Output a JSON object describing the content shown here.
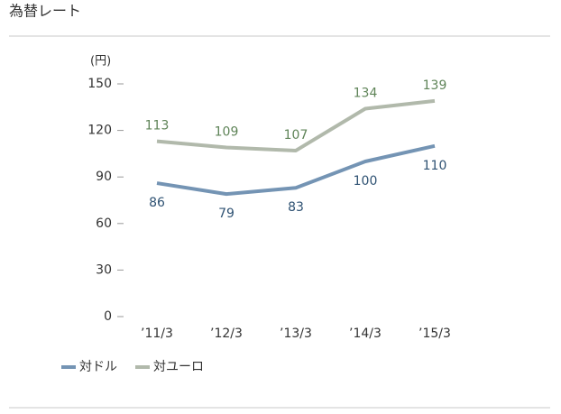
{
  "chart_data": {
    "type": "line",
    "title": "為替レート",
    "y_label": "(円)",
    "categories": [
      "’11/3",
      "’12/3",
      "’13/3",
      "’14/3",
      "’15/3"
    ],
    "series": [
      {
        "name": "対ドル",
        "color": "#7494b4",
        "label_color": "#2f5273",
        "values": [
          86,
          79,
          83,
          100,
          110
        ]
      },
      {
        "name": "対ユーロ",
        "color": "#b1b9ab",
        "label_color": "#5f8458",
        "values": [
          113,
          109,
          107,
          134,
          139
        ]
      }
    ],
    "ylim": [
      0,
      150
    ],
    "yticks": [
      0,
      30,
      60,
      90,
      120,
      150
    ]
  }
}
